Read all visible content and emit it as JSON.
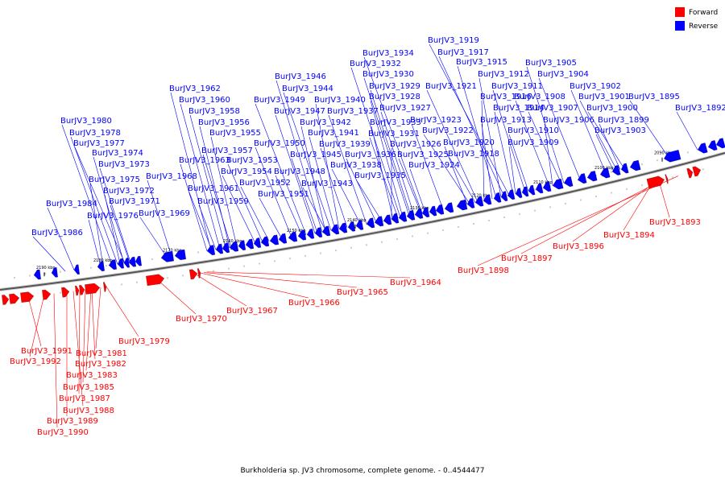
{
  "legend": [
    {
      "label": "Forward",
      "color": "#ff0000"
    },
    {
      "label": "Reverse",
      "color": "#0000ff"
    }
  ],
  "caption": "Burkholderia sp. JV3 chromosome, complete genome. - 0..4544477",
  "chart_data": {
    "type": "diagram",
    "tick_labels": [
      "2190 kbp",
      "2180 kbp",
      "2170 kbp",
      "2160 kbp",
      "2150 kbp",
      "2140 kbp",
      "2130 kbp",
      "2120 kbp",
      "2110 kbp",
      "2100 kbp",
      "2090 kbp"
    ],
    "reverse_labels": [
      "BurJV3_1919",
      "BurJV3_1917",
      "BurJV3_1934",
      "BurJV3_1915",
      "BurJV3_1905",
      "BurJV3_1932",
      "BurJV3_1930",
      "BurJV3_1912",
      "BurJV3_1904",
      "BurJV3_1946",
      "BurJV3_1929",
      "BurJV3_1921",
      "BurJV3_1911",
      "BurJV3_1902",
      "BurJV3_1962",
      "BurJV3_1944",
      "BurJV3_1928",
      "BurJV3_1916",
      "BurJV3_1908",
      "BurJV3_1901",
      "BurJV3_1895",
      "BurJV3_1960",
      "BurJV3_1949",
      "BurJV3_1940",
      "BurJV3_1927",
      "BurJV3_1914",
      "BurJV3_1907",
      "BurJV3_1900",
      "BurJV3_1892",
      "BurJV3_1958",
      "BurJV3_1947",
      "BurJV3_1937",
      "BurJV3_1923",
      "BurJV3_1913",
      "BurJV3_1906",
      "BurJV3_1899",
      "BurJV3_1980",
      "BurJV3_1956",
      "BurJV3_1942",
      "BurJV3_1933",
      "BurJV3_1922",
      "BurJV3_1910",
      "BurJV3_1903",
      "BurJV3_1978",
      "BurJV3_1955",
      "BurJV3_1941",
      "BurJV3_1931",
      "BurJV3_1977",
      "BurJV3_1950",
      "BurJV3_1939",
      "BurJV3_1926",
      "BurJV3_1920",
      "BurJV3_1909",
      "BurJV3_1957",
      "BurJV3_1945",
      "BurJV3_1936",
      "BurJV3_1925",
      "BurJV3_1918",
      "BurJV3_1974",
      "BurJV3_1963",
      "BurJV3_1953",
      "BurJV3_1973",
      "BurJV3_1938",
      "BurJV3_1924",
      "BurJV3_1954",
      "BurJV3_1948",
      "BurJV3_1935",
      "BurJV3_1968",
      "BurJV3_1975",
      "BurJV3_1952",
      "BurJV3_1943",
      "BurJV3_1961",
      "BurJV3_1972",
      "BurJV3_1951",
      "BurJV3_1971",
      "BurJV3_1959",
      "BurJV3_1984",
      "BurJV3_1969",
      "BurJV3_1976",
      "BurJV3_1986"
    ],
    "forward_labels": [
      "BurJV3_1893",
      "BurJV3_1894",
      "BurJV3_1896",
      "BurJV3_1897",
      "BurJV3_1898",
      "BurJV3_1964",
      "BurJV3_1965",
      "BurJV3_1966",
      "BurJV3_1967",
      "BurJV3_1970",
      "BurJV3_1979",
      "BurJV3_1981",
      "BurJV3_1991",
      "BurJV3_1982",
      "BurJV3_1992",
      "BurJV3_1983",
      "BurJV3_1985",
      "BurJV3_1987",
      "BurJV3_1988",
      "BurJV3_1989",
      "BurJV3_1990"
    ]
  }
}
